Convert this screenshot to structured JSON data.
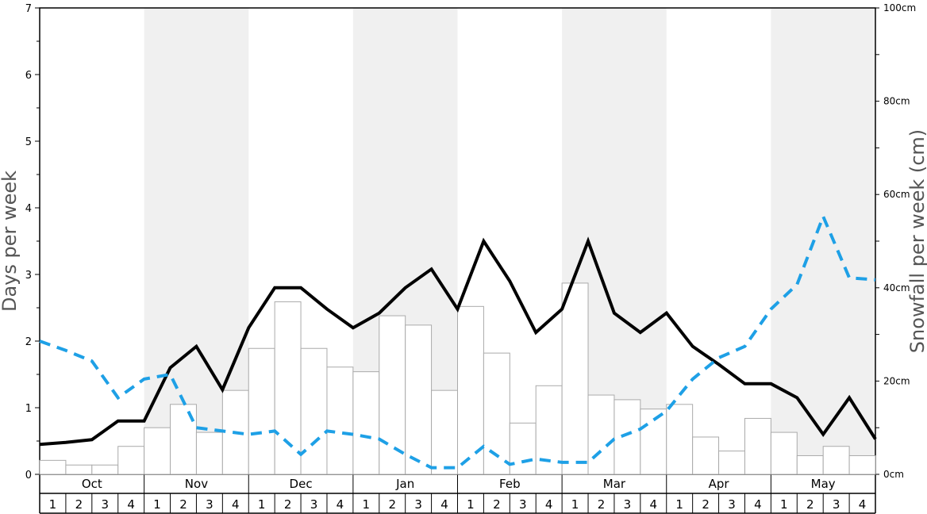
{
  "chart_data": {
    "type": "bar",
    "y_left": {
      "title": "Days per week",
      "ylim": [
        0,
        7
      ],
      "ticks": [
        "0",
        "1",
        "2",
        "3",
        "4",
        "5",
        "6",
        "7"
      ]
    },
    "y_right": {
      "title": "Snowfall per week (cm)",
      "ylim": [
        0,
        100
      ],
      "ticks": [
        "0cm",
        "20cm",
        "40cm",
        "60cm",
        "80cm",
        "100cm"
      ]
    },
    "months": [
      "Oct",
      "Nov",
      "Dec",
      "Jan",
      "Feb",
      "Mar",
      "Apr",
      "May"
    ],
    "weeks": [
      "1",
      "2",
      "3",
      "4"
    ],
    "shaded_months": [
      "Nov",
      "Jan",
      "Mar",
      "May"
    ],
    "colors": {
      "shade": "#f0f0f0",
      "bar_fill": "#ffffff",
      "bar_stroke": "#aaaaaa",
      "solid_line": "#000000",
      "dashed_line": "#1ea0e6"
    },
    "series": [
      {
        "kind": "bar",
        "axis": "right",
        "values": [
          3,
          2,
          2,
          6,
          10,
          15,
          9,
          18,
          27,
          37,
          27,
          23,
          22,
          34,
          32,
          18,
          36,
          26,
          11,
          19,
          41,
          17,
          16,
          14,
          15,
          8,
          5,
          12,
          9,
          4,
          6,
          4
        ]
      },
      {
        "kind": "line",
        "style": "solid",
        "axis": "left",
        "values": [
          0.45,
          0.48,
          0.52,
          0.8,
          0.8,
          1.6,
          1.92,
          1.27,
          2.2,
          2.8,
          2.8,
          2.48,
          2.2,
          2.42,
          2.8,
          3.08,
          2.48,
          3.5,
          2.9,
          2.13,
          2.48,
          3.5,
          2.42,
          2.13,
          2.42,
          1.92,
          1.65,
          1.36,
          1.36,
          1.15,
          0.6,
          1.15,
          0.53
        ]
      },
      {
        "kind": "line",
        "style": "dashed",
        "axis": "left",
        "values": [
          2.0,
          1.86,
          1.7,
          1.15,
          1.43,
          1.5,
          0.7,
          0.65,
          0.6,
          0.65,
          0.3,
          0.65,
          0.6,
          0.53,
          0.3,
          0.1,
          0.1,
          0.42,
          0.15,
          0.23,
          0.18,
          0.18,
          0.53,
          0.68,
          0.95,
          1.43,
          1.75,
          1.92,
          2.48,
          2.85,
          3.87,
          2.95,
          2.92
        ]
      }
    ]
  }
}
